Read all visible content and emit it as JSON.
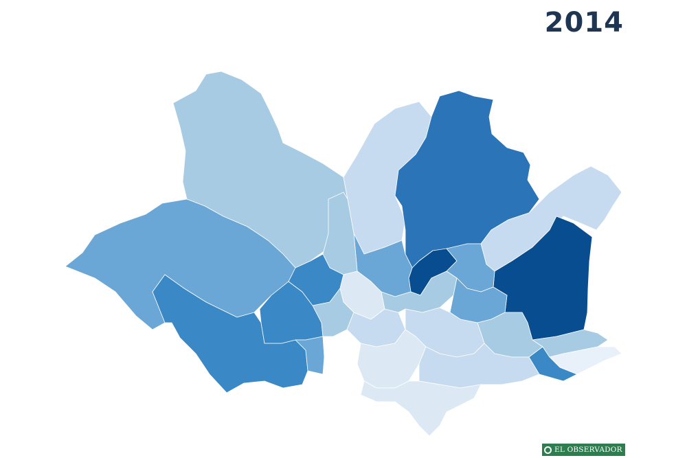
{
  "year": "2014",
  "logo": {
    "text": "EL OBSERVADOR",
    "color": "#2e7d4f"
  },
  "palette": {
    "lightest": "#dce9f5",
    "light": "#c6dbef",
    "light_mid": "#a6cbe3",
    "mid": "#6aa7d6",
    "mid_dark": "#3a88c5",
    "dark": "#2b74b8",
    "darkest": "#084d8f"
  }
}
